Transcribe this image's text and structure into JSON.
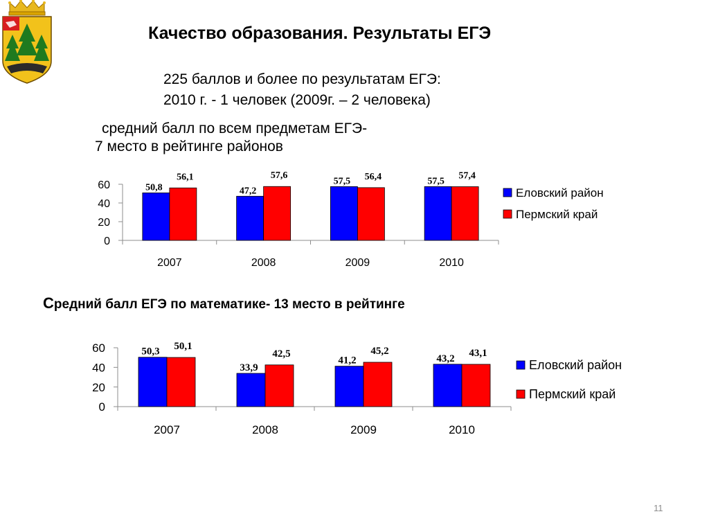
{
  "slide": {
    "title": "Качество образования.  Результаты ЕГЭ",
    "info_line1": "225 баллов и более по результатам ЕГЭ:",
    "info_line2": "2010 г. - 1 человек (2009г. – 2 человека)",
    "subtitle1_line1": "средний балл по всем предметам ЕГЭ-",
    "subtitle1_line2": "7 место в рейтинге районов",
    "subtitle2_first": "С",
    "subtitle2_rest": "редний балл ЕГЭ по математике- 13 место в рейтинге",
    "page_number": "11"
  },
  "colors": {
    "series1": "#0000ff",
    "series2": "#ff0000"
  },
  "chart_data": [
    {
      "type": "bar",
      "categories": [
        "2007",
        "2008",
        "2009",
        "2010"
      ],
      "series": [
        {
          "name": "Еловский район",
          "values": [
            50.8,
            47.2,
            57.5,
            57.5
          ],
          "labels": [
            "50,8",
            "47,2",
            "57,5",
            "57,5"
          ]
        },
        {
          "name": "Пермский край",
          "values": [
            56.1,
            57.6,
            56.4,
            57.4
          ],
          "labels": [
            "56,1",
            "57,6",
            "56,4",
            "57,4"
          ]
        }
      ],
      "yticks": [
        "0",
        "20",
        "40",
        "60"
      ],
      "ylim": [
        0,
        60
      ],
      "legend": "right",
      "grid": false
    },
    {
      "type": "bar",
      "categories": [
        "2007",
        "2008",
        "2009",
        "2010"
      ],
      "series": [
        {
          "name": "Еловский район",
          "values": [
            50.3,
            33.9,
            41.2,
            43.2
          ],
          "labels": [
            "50,3",
            "33,9",
            "41,2",
            "43,2"
          ]
        },
        {
          "name": "Пермский край",
          "values": [
            50.1,
            42.5,
            45.2,
            43.1
          ],
          "labels": [
            "50,1",
            "42,5",
            "45,2",
            "43,1"
          ]
        }
      ],
      "yticks": [
        "0",
        "20",
        "40",
        "60"
      ],
      "ylim": [
        0,
        60
      ],
      "legend": "right",
      "grid": false
    }
  ]
}
